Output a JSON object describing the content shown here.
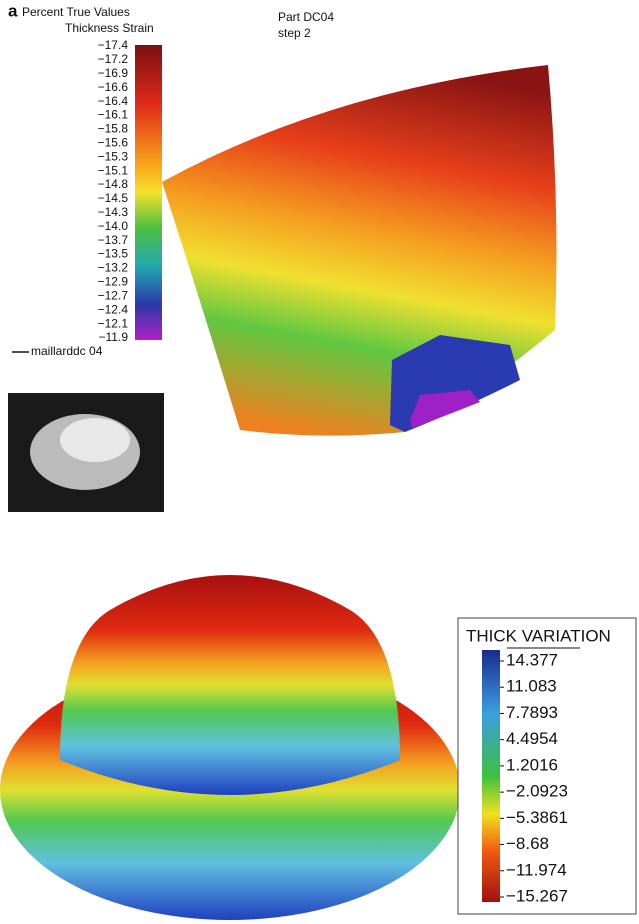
{
  "panel_a": {
    "label": "a",
    "legend_title": [
      "Percent True Values",
      "Thickness Strain"
    ],
    "scale_labels": [
      "−17.4",
      "−17.2",
      "−16.9",
      "−16.6",
      "−16.4",
      "−16.1",
      "−15.8",
      "−15.6",
      "−15.3",
      "−15.1",
      "−14.8",
      "−14.5",
      "−14.3",
      "−14.0",
      "−13.7",
      "−13.5",
      "−13.2",
      "−12.9",
      "−12.7",
      "−12.4",
      "−12.1",
      "−11.9"
    ],
    "part": "Part  DC04",
    "step": "step 2",
    "mesh_label": "maillarddc 04"
  },
  "panel_b": {
    "legend_title": "THICK VARIATION",
    "scale_labels": [
      "14.377",
      "11.083",
      "7.7893",
      "4.4954",
      "1.2016",
      "−2.0923",
      "−5.3861",
      "−8.68",
      "−11.974",
      "−15.267"
    ]
  }
}
